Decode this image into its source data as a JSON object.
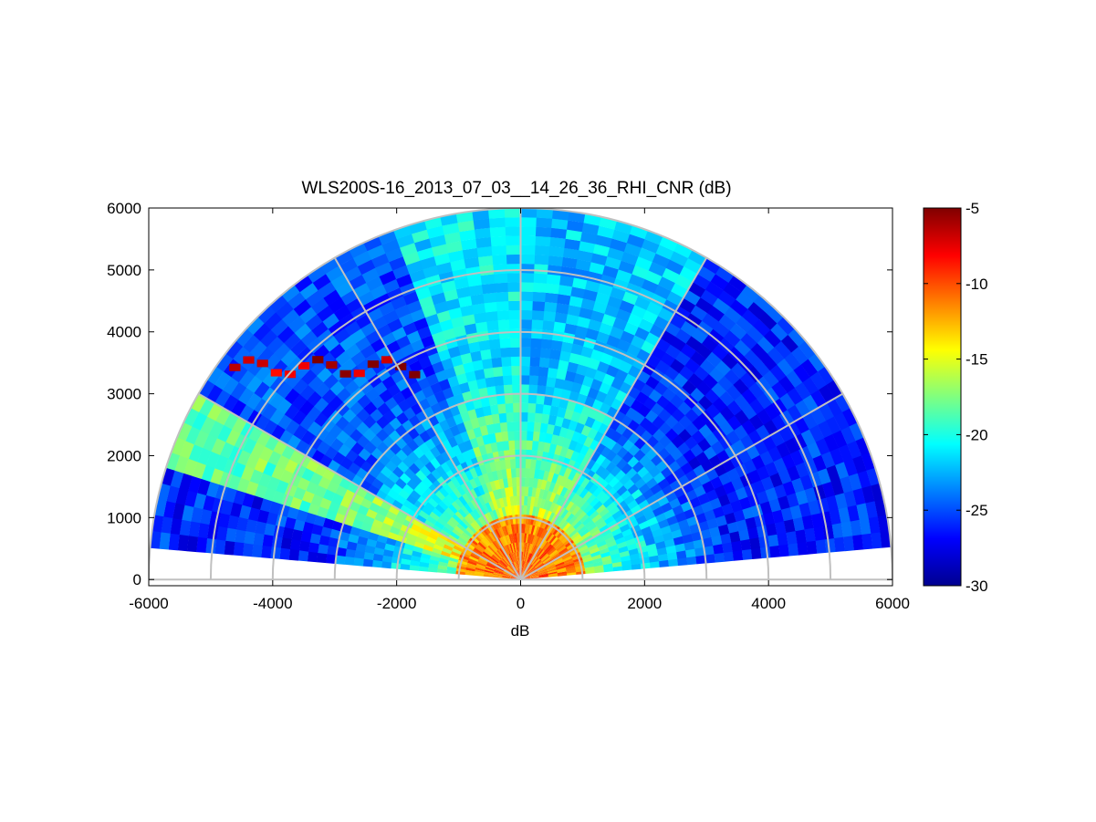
{
  "chart_data": {
    "type": "heatmap",
    "projection": "polar-half-disk (RHI scan)",
    "title": "WLS200S-16_2013_07_03__14_26_36_RHI_CNR (dB)",
    "xlabel": "dB",
    "ylabel": "",
    "xlim": [
      -6000,
      6000
    ],
    "ylim": [
      -100,
      6000
    ],
    "x_ticks": [
      -6000,
      -4000,
      -2000,
      0,
      2000,
      4000,
      6000
    ],
    "y_ticks": [
      0,
      1000,
      2000,
      3000,
      4000,
      5000,
      6000
    ],
    "polar_grid": {
      "range_rings": [
        1000,
        2000,
        3000,
        4000,
        5000,
        6000
      ],
      "spokes_deg": [
        0,
        30,
        60,
        90,
        120,
        150,
        180
      ]
    },
    "max_range": 6000,
    "elevation_coverage_deg": [
      5,
      175
    ],
    "colorbar": {
      "colormap": "jet",
      "min": -30,
      "max": -5,
      "ticks": [
        -5,
        -10,
        -15,
        -20,
        -25,
        -30
      ]
    },
    "sectors": [
      {
        "from_deg": 5,
        "to_deg": 30,
        "near_range_cnr": -11,
        "far_range_cnr": -26
      },
      {
        "from_deg": 30,
        "to_deg": 60,
        "near_range_cnr": -10,
        "far_range_cnr": -26
      },
      {
        "from_deg": 60,
        "to_deg": 90,
        "near_range_cnr": -12,
        "far_range_cnr": -22
      },
      {
        "from_deg": 90,
        "to_deg": 110,
        "near_range_cnr": -12,
        "far_range_cnr": -21
      },
      {
        "from_deg": 110,
        "to_deg": 150,
        "near_range_cnr": -13,
        "far_range_cnr": -25
      },
      {
        "from_deg": 150,
        "to_deg": 162,
        "near_range_cnr": -12,
        "far_range_cnr": -18
      },
      {
        "from_deg": 162,
        "to_deg": 175,
        "near_range_cnr": -12,
        "far_range_cnr": -26
      }
    ],
    "features": [
      {
        "kind": "near-field maximum",
        "range": [
          0,
          1200
        ],
        "cnr": -10
      },
      {
        "kind": "elevated aerosol layer",
        "from_deg": 150,
        "to_deg": 162,
        "range": [
          1500,
          5800
        ],
        "cnr": -17
      },
      {
        "kind": "strong return streak",
        "x": [
          -4700,
          -1800
        ],
        "y": [
          3300,
          3550
        ],
        "cnr": -7
      }
    ]
  }
}
